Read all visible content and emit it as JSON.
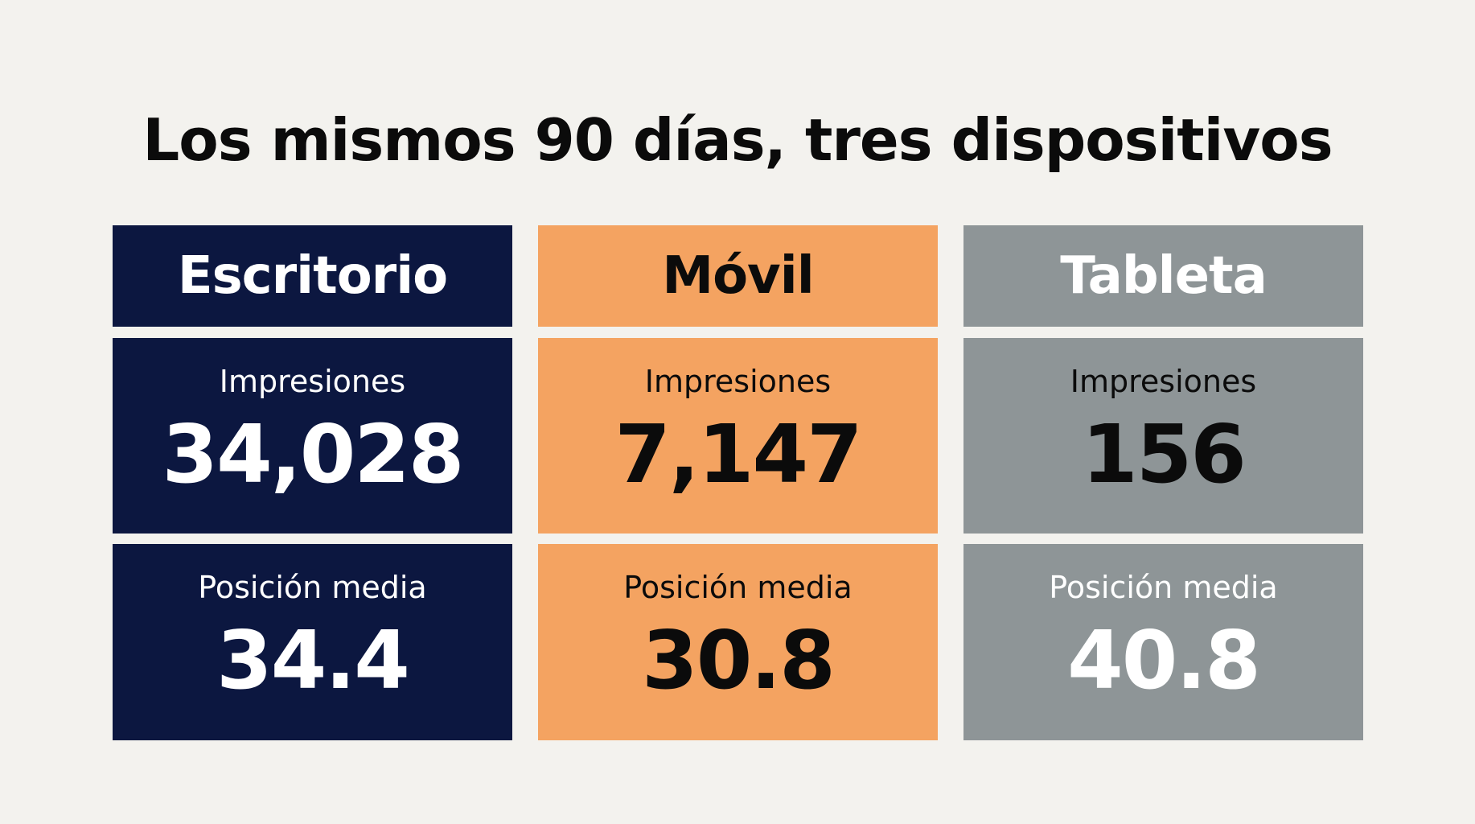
{
  "title": "Los mismos 90 días, tres dispositivos",
  "devices": [
    {
      "name": "Escritorio",
      "bg": "#0c1740",
      "text_color": "#ffffff",
      "impressions_label": "Impresiones",
      "impressions": "34,028",
      "position_label": "Posición media",
      "position": "34.4"
    },
    {
      "name": "Móvil",
      "bg": "#f4a361",
      "text_color": "#0b0b0b",
      "impressions_label": "Impresiones",
      "impressions": "7,147",
      "position_label": "Posición media",
      "position": "30.8"
    },
    {
      "name": "Tableta",
      "bg": "#8e9597",
      "text_color": "#ffffff",
      "value_color_impressions": "#0b0b0b",
      "impressions_label": "Impresiones",
      "impressions": "156",
      "position_label": "Posición media",
      "position": "40.8"
    }
  ]
}
